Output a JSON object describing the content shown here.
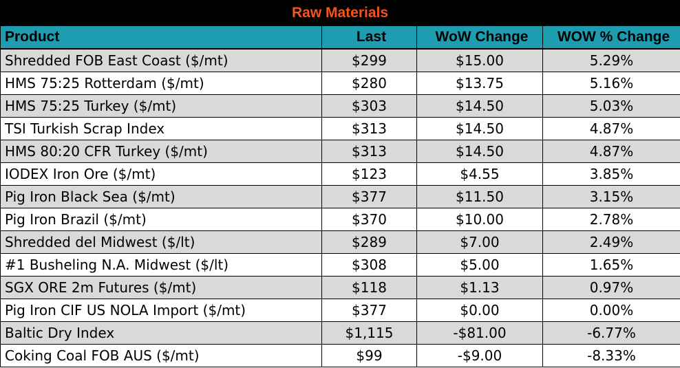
{
  "title": "Raw Materials",
  "colors": {
    "title_bg": "#000000",
    "title_text": "#f0561d",
    "header_bg": "#1e9db1",
    "row_shade": "#d9d9d9"
  },
  "chart_data": {
    "type": "table",
    "title": "Raw Materials",
    "columns": [
      "Product",
      "Last",
      "WoW Change",
      "WOW % Change"
    ],
    "rows": [
      [
        "Shredded FOB East Coast ($/mt)",
        "$299",
        "$15.00",
        "5.29%"
      ],
      [
        "HMS 75:25 Rotterdam ($/mt)",
        "$280",
        "$13.75",
        "5.16%"
      ],
      [
        "HMS 75:25 Turkey ($/mt)",
        "$303",
        "$14.50",
        "5.03%"
      ],
      [
        "TSI Turkish Scrap Index",
        "$313",
        "$14.50",
        "4.87%"
      ],
      [
        "HMS 80:20 CFR Turkey ($/mt)",
        "$313",
        "$14.50",
        "4.87%"
      ],
      [
        "IODEX  Iron Ore ($/mt)",
        "$123",
        "$4.55",
        "3.85%"
      ],
      [
        "Pig Iron Black Sea ($/mt)",
        "$377",
        "$11.50",
        "3.15%"
      ],
      [
        "Pig Iron Brazil ($/mt)",
        "$370",
        "$10.00",
        "2.78%"
      ],
      [
        "Shredded del  Midwest ($/lt)",
        "$289",
        "$7.00",
        "2.49%"
      ],
      [
        "#1 Busheling N.A. Midwest ($/lt)",
        "$308",
        "$5.00",
        "1.65%"
      ],
      [
        "SGX ORE 2m Futures ($/mt)",
        "$118",
        "$1.13",
        "0.97%"
      ],
      [
        "Pig Iron CIF US NOLA Import ($/mt)",
        "$377",
        "$0.00",
        "0.00%"
      ],
      [
        "Baltic Dry Index",
        "$1,115",
        "-$81.00",
        "-6.77%"
      ],
      [
        "Coking Coal FOB AUS ($/mt)",
        "$99",
        "-$9.00",
        "-8.33%"
      ]
    ]
  }
}
